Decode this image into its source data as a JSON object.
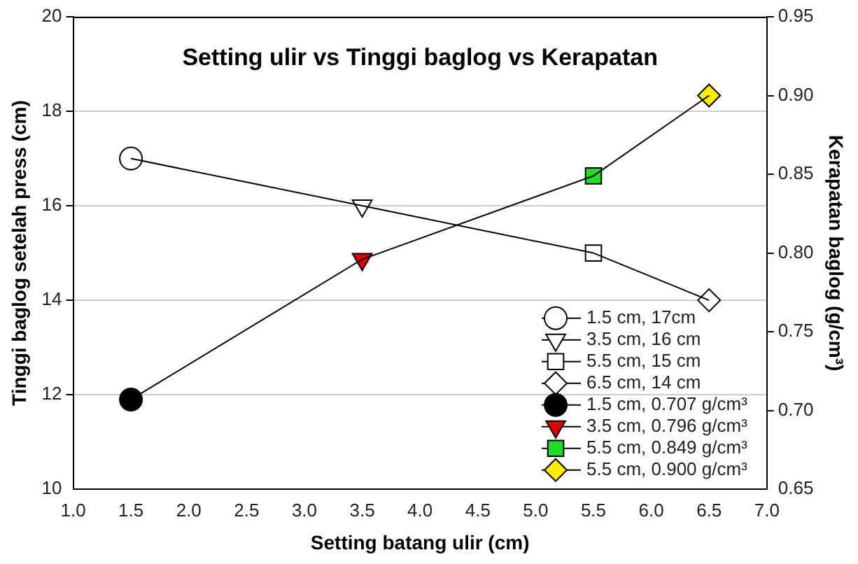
{
  "chart_data": {
    "type": "line",
    "title": "Setting ulir vs Tinggi baglog vs Kerapatan",
    "xlabel": "Setting batang ulir (cm)",
    "ylabel": "Tinggi baglog setelah press (cm)",
    "y2label": "Kerapatan baglog (g/cm³)",
    "x": [
      1.5,
      3.5,
      5.5,
      6.5
    ],
    "xlim": [
      1.0,
      7.0
    ],
    "xticks": [
      {
        "value": 1,
        "label": "1.0"
      },
      {
        "value": 1.5,
        "label": "1.5"
      },
      {
        "value": 2,
        "label": "2.0"
      },
      {
        "value": 2.5,
        "label": "2.5"
      },
      {
        "value": 3,
        "label": "3.0"
      },
      {
        "value": 3.5,
        "label": "3.5"
      },
      {
        "value": 4,
        "label": "4.0"
      },
      {
        "value": 4.5,
        "label": "4.5"
      },
      {
        "value": 5,
        "label": "5.0"
      },
      {
        "value": 5.5,
        "label": "5.5"
      },
      {
        "value": 6,
        "label": "6.0"
      },
      {
        "value": 6.5,
        "label": "6.5"
      },
      {
        "value": 7,
        "label": "7.0"
      }
    ],
    "ylim": [
      10,
      20
    ],
    "yticks": [
      10,
      12,
      14,
      16,
      18,
      20
    ],
    "y2lim": [
      0.65,
      0.95
    ],
    "y2ticks": [
      {
        "value": 0.65,
        "label": "0.65"
      },
      {
        "value": 0.7,
        "label": "0.70"
      },
      {
        "value": 0.75,
        "label": "0.75"
      },
      {
        "value": 0.8,
        "label": "0.80"
      },
      {
        "value": 0.85,
        "label": "0.85"
      },
      {
        "value": 0.9,
        "label": "0.90"
      },
      {
        "value": 0.95,
        "label": "0.95"
      }
    ],
    "grid": "y",
    "legend": "bottom right",
    "series": [
      {
        "type": "line",
        "color": "#000000",
        "marker": "none",
        "values": [
          17,
          16,
          15,
          14
        ]
      },
      {
        "type": "line",
        "color": "#000000",
        "marker": "none",
        "axis": "y2",
        "values": [
          0.707,
          0.796,
          0.849,
          0.9
        ]
      },
      {
        "type": "scatter",
        "name": "1.5 cm, 17cm",
        "color": "#ffffff",
        "marker": "circle",
        "x": [
          1.5
        ],
        "values": [
          17
        ]
      },
      {
        "type": "scatter",
        "name": "3.5 cm, 16 cm",
        "color": "#ffffff",
        "marker": "triangle",
        "x": [
          3.5
        ],
        "values": [
          16
        ]
      },
      {
        "type": "scatter",
        "name": "5.5 cm, 15 cm",
        "color": "#ffffff",
        "marker": "square",
        "x": [
          5.5
        ],
        "values": [
          15
        ]
      },
      {
        "type": "scatter",
        "name": "6.5 cm, 14 cm",
        "color": "#ffffff",
        "marker": "diamond",
        "x": [
          6.5
        ],
        "values": [
          14
        ]
      },
      {
        "type": "scatter",
        "name": "1.5 cm, 0.707 g/cm³",
        "color": "#000000",
        "marker": "circle",
        "axis": "y2",
        "x": [
          1.5
        ],
        "values": [
          0.707
        ]
      },
      {
        "type": "scatter",
        "name": "3.5 cm, 0.796 g/cm³",
        "color": "#e00000",
        "marker": "triangle",
        "axis": "y2",
        "x": [
          3.5
        ],
        "values": [
          0.796
        ]
      },
      {
        "type": "scatter",
        "name": "5.5 cm, 0.849 g/cm³",
        "color": "#22dd22",
        "marker": "square",
        "axis": "y2",
        "x": [
          5.5
        ],
        "values": [
          0.849
        ]
      },
      {
        "type": "scatter",
        "name": "5.5 cm, 0.900 g/cm³",
        "color": "#ffee00",
        "marker": "diamond",
        "axis": "y2",
        "x": [
          6.5
        ],
        "values": [
          0.9
        ]
      }
    ]
  }
}
